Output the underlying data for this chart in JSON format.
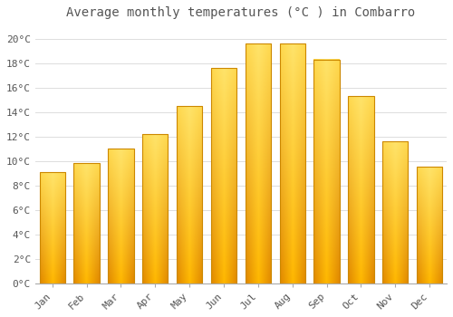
{
  "title": "Average monthly temperatures (°C ) in Combarro",
  "months": [
    "Jan",
    "Feb",
    "Mar",
    "Apr",
    "May",
    "Jun",
    "Jul",
    "Aug",
    "Sep",
    "Oct",
    "Nov",
    "Dec"
  ],
  "temperatures": [
    9.1,
    9.8,
    11.0,
    12.2,
    14.5,
    17.6,
    19.6,
    19.6,
    18.3,
    15.3,
    11.6,
    9.5
  ],
  "bar_color_center": "#FFD000",
  "bar_color_edge": "#E08800",
  "background_color": "#FFFFFF",
  "grid_color": "#DDDDDD",
  "text_color": "#555555",
  "ylim": [
    0,
    21
  ],
  "yticks": [
    0,
    2,
    4,
    6,
    8,
    10,
    12,
    14,
    16,
    18,
    20
  ],
  "title_fontsize": 10,
  "tick_fontsize": 8,
  "title_font": "monospace",
  "tick_font": "monospace",
  "bar_width": 0.75
}
